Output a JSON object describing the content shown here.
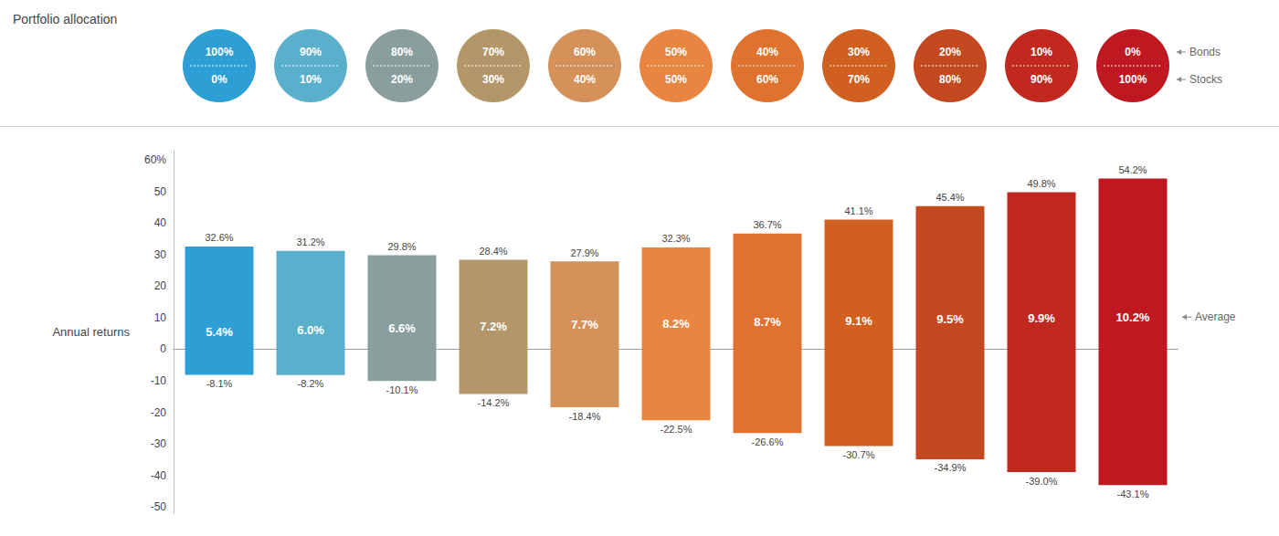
{
  "chart_data": {
    "type": "bar",
    "title": "Portfolio allocation",
    "y_label": "Annual returns",
    "annotation": "Average",
    "categories": [
      null,
      null,
      null,
      null,
      null,
      null,
      null,
      null,
      null,
      null,
      null
    ],
    "colors": [
      "#2e9fd4",
      "#5aafcc",
      "#8a9e9e",
      "#b3976a",
      "#d4915a",
      "#e88540",
      "#e07230",
      "#d05f20",
      "#c44820",
      "#c02820",
      "#c01820"
    ],
    "high": {
      "values": [
        32.6,
        31.2,
        29.8,
        28.4,
        27.9,
        32.3,
        36.7,
        41.1,
        45.4,
        49.8,
        54.2
      ],
      "value_labels": [
        "32.6%",
        "31.2%",
        "29.8%",
        "28.4%",
        "27.9%",
        "32.3%",
        "36.7%",
        "41.1%",
        "45.4%",
        "49.8%",
        "54.2%"
      ]
    },
    "average": {
      "values": [
        5.4,
        6.0,
        6.6,
        7.2,
        7.7,
        8.2,
        8.7,
        9.1,
        9.5,
        9.9,
        10.2
      ],
      "value_labels": [
        "5.4%",
        "6.0%",
        "6.6%",
        "7.2%",
        "7.7%",
        "8.2%",
        "8.7%",
        "9.1%",
        "9.5%",
        "9.9%",
        "10.2%"
      ]
    },
    "low": {
      "values": [
        -8.1,
        -8.2,
        -10.1,
        -14.2,
        -18.4,
        -22.5,
        -26.6,
        -30.7,
        -34.9,
        -39.0,
        -43.1
      ],
      "value_labels": [
        "-8.1%",
        "-8.2%",
        "-10.1%",
        "-14.2%",
        "-18.4%",
        "-22.5%",
        "-26.6%",
        "-30.7%",
        "-34.9%",
        "-39.0%",
        "-43.1%"
      ]
    },
    "allocation": [
      {
        "bonds": "100%",
        "stocks": "0%"
      },
      {
        "bonds": "90%",
        "stocks": "10%"
      },
      {
        "bonds": "80%",
        "stocks": "20%"
      },
      {
        "bonds": "70%",
        "stocks": "30%"
      },
      {
        "bonds": "60%",
        "stocks": "40%"
      },
      {
        "bonds": "50%",
        "stocks": "50%"
      },
      {
        "bonds": "40%",
        "stocks": "60%"
      },
      {
        "bonds": "30%",
        "stocks": "70%"
      },
      {
        "bonds": "20%",
        "stocks": "80%"
      },
      {
        "bonds": "10%",
        "stocks": "90%"
      },
      {
        "bonds": "0%",
        "stocks": "100%"
      }
    ],
    "allocation_labels": {
      "bonds": "Bonds",
      "stocks": "Stocks"
    },
    "ylim": [
      -52,
      63
    ],
    "yticks": [
      -50,
      -40,
      -30,
      -20,
      -10,
      0,
      10,
      20,
      30,
      40,
      50,
      {
        "value": 60,
        "label": "60%"
      }
    ],
    "grid": false,
    "tick_labels": "y",
    "data_labels": true
  }
}
